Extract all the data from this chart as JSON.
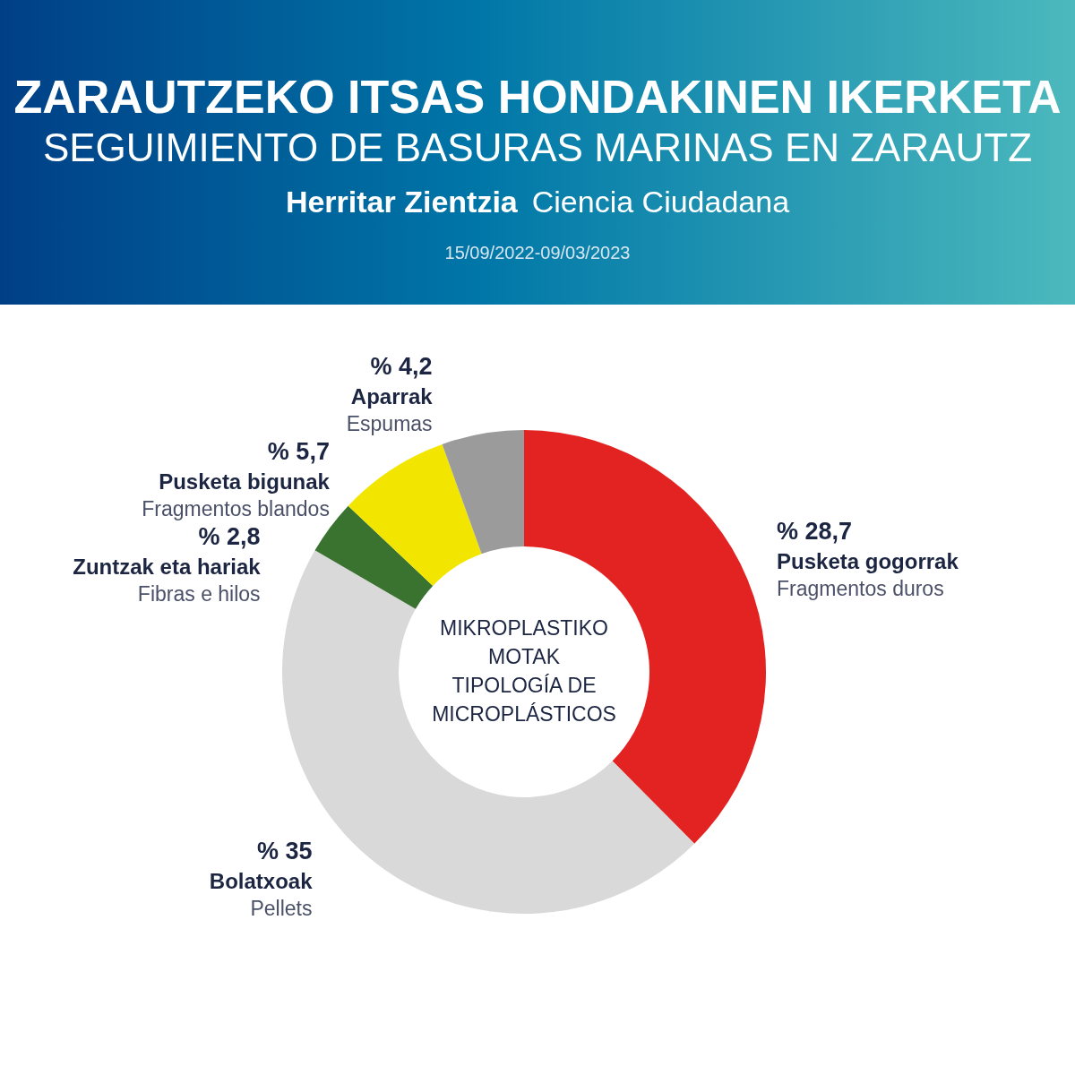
{
  "chart_data": {
    "type": "donut",
    "title": "ZARAUTZEKO ITSAS HONDAKINEN IKERKETA",
    "subtitle": "SEGUIMIENTO DE BASURAS MARINAS EN ZARAUTZ",
    "annotations": [
      "Herritar Zientzia",
      "Ciencia Ciudadana",
      "15/09/2022-09/03/2023",
      "MIKROPLASTIKO\nMOTAK\nTIPOLOGÍA DE\nMICROPLÁSTICOS"
    ],
    "categories": [
      "Pusketa gogorrak\nFragmentos duros",
      "Bolatxoak\nPellets",
      "Zuntzak eta hariak\nFibras e hilos",
      "Pusketa bigunak\nFragmentos blandos",
      "Aparrak\nEspumas"
    ],
    "values": [
      28.7,
      35,
      2.8,
      5.7,
      4.2
    ],
    "value_labels": [
      "% 28,7",
      "% 35",
      "% 2,8",
      "% 5,7",
      "% 4,2"
    ],
    "colors": [
      "#e32322",
      "#d9d9d9",
      "#3a7230",
      "#f2e600",
      "#9b9b9b"
    ],
    "legend": false
  }
}
